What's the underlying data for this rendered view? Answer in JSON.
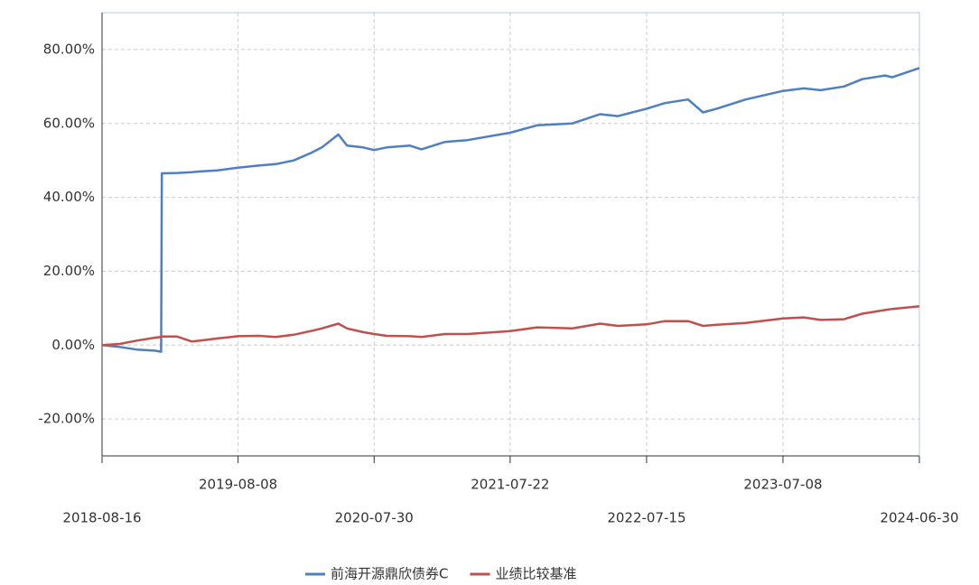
{
  "chart_data": {
    "type": "line",
    "x": [
      "2018-08-16",
      "2018-10-01",
      "2018-11-15",
      "2019-01-01",
      "2019-01-18",
      "2019-01-20",
      "2019-03-01",
      "2019-04-08",
      "2019-05-01",
      "2019-06-15",
      "2019-08-08",
      "2019-10-01",
      "2019-11-15",
      "2020-01-01",
      "2020-02-15",
      "2020-03-15",
      "2020-04-27",
      "2020-05-20",
      "2020-07-01",
      "2020-07-30",
      "2020-09-01",
      "2020-11-01",
      "2020-12-01",
      "2021-02-01",
      "2021-04-01",
      "2021-07-22",
      "2021-10-01",
      "2022-01-01",
      "2022-03-15",
      "2022-05-01",
      "2022-07-15",
      "2022-09-01",
      "2022-11-01",
      "2022-12-10",
      "2023-01-15",
      "2023-04-01",
      "2023-07-08",
      "2023-09-01",
      "2023-10-15",
      "2023-12-15",
      "2024-02-01",
      "2024-04-01",
      "2024-04-20",
      "2024-06-30"
    ],
    "series": [
      {
        "name": "前海开源鼎欣债券C",
        "color": "#4f7fc3",
        "values": [
          0,
          -0.5,
          -1.2,
          -1.5,
          -1.8,
          46.5,
          46.6,
          46.8,
          47,
          47.3,
          48,
          48.6,
          49,
          50,
          52,
          53.5,
          57,
          54,
          53.5,
          52.8,
          53.5,
          54,
          53,
          55,
          55.5,
          57.5,
          59.5,
          60,
          62.5,
          62,
          64,
          65.5,
          66.5,
          63,
          64,
          66.5,
          68.8,
          69.5,
          69,
          70,
          72,
          73,
          72.5,
          75
        ]
      },
      {
        "name": "业绩比较基准",
        "color": "#c0504d",
        "values": [
          0,
          0.3,
          1.2,
          2,
          2.2,
          2.3,
          2.3,
          1,
          1.2,
          1.8,
          2.4,
          2.5,
          2.2,
          2.8,
          3.8,
          4.5,
          5.8,
          4.5,
          3.5,
          3,
          2.5,
          2.4,
          2.2,
          3,
          3,
          3.8,
          4.8,
          4.5,
          5.8,
          5.2,
          5.6,
          6.5,
          6.5,
          5.2,
          5.5,
          6,
          7.2,
          7.5,
          6.8,
          7,
          8.5,
          9.5,
          9.8,
          10.5
        ]
      }
    ],
    "xlim": [
      "2018-08-16",
      "2024-06-30"
    ],
    "xticks": [
      "2018-08-16",
      "2019-08-08",
      "2020-07-30",
      "2021-07-22",
      "2022-07-15",
      "2023-07-08",
      "2024-06-30"
    ],
    "ylim": [
      -30,
      90
    ],
    "yticks": [
      {
        "value": -20,
        "label": "-20.00%"
      },
      {
        "value": 0,
        "label": "0.00%"
      },
      {
        "value": 20,
        "label": "20.00%"
      },
      {
        "value": 40,
        "label": "40.00%"
      },
      {
        "value": 60,
        "label": "60.00%"
      },
      {
        "value": 80,
        "label": "80.00%"
      }
    ],
    "grid": true,
    "legend": "bottom"
  }
}
